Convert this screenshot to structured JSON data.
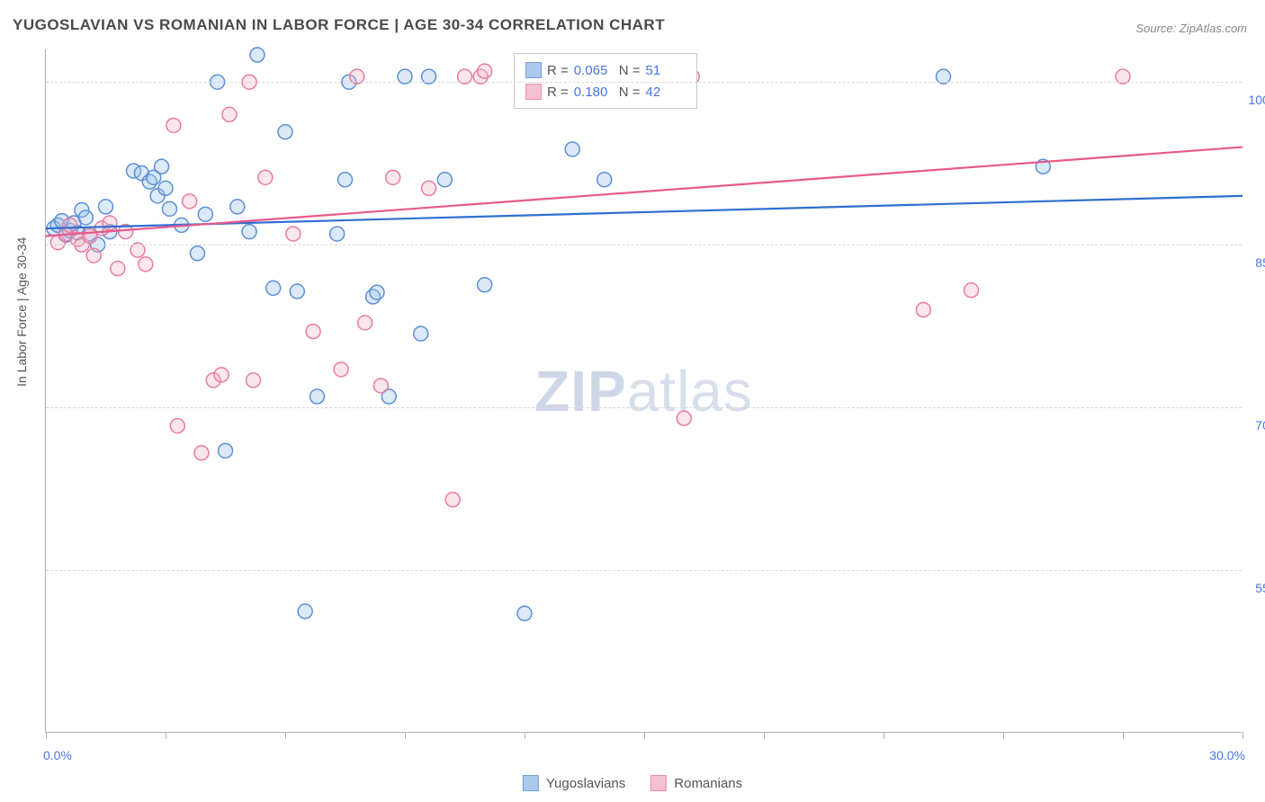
{
  "title": "YUGOSLAVIAN VS ROMANIAN IN LABOR FORCE | AGE 30-34 CORRELATION CHART",
  "source": "Source: ZipAtlas.com",
  "yaxis_label": "In Labor Force | Age 30-34",
  "watermark_zip": "ZIP",
  "watermark_atlas": "atlas",
  "chart": {
    "type": "scatter",
    "background_color": "#ffffff",
    "grid_color": "#d8d8d8",
    "axis_color": "#b0b0b0",
    "tick_label_color": "#4a74e8",
    "xlim": [
      0,
      30
    ],
    "ylim": [
      40,
      103
    ],
    "x_min_label": "0.0%",
    "x_max_label": "30.0%",
    "xticks": [
      0,
      3,
      6,
      9,
      12,
      15,
      18,
      21,
      24,
      27,
      30
    ],
    "yticks": [
      55,
      70,
      85,
      100
    ],
    "ytick_labels": [
      "55.0%",
      "70.0%",
      "85.0%",
      "100.0%"
    ],
    "marker_radius": 8,
    "marker_fill_opacity": 0.35,
    "marker_stroke_width": 1.5,
    "line_width": 2.2,
    "series": [
      {
        "key": "yugoslavians",
        "label": "Yugoslavians",
        "color_stroke": "#5b8fd6",
        "color_fill": "#9cc0ea",
        "line_color": "#2f6fd0",
        "R": "0.065",
        "N": "51",
        "trend": {
          "x1": 0,
          "y1": 86.5,
          "x2": 30,
          "y2": 89.5
        },
        "points": [
          [
            0.2,
            86.5
          ],
          [
            0.3,
            86.8
          ],
          [
            0.4,
            87.2
          ],
          [
            0.5,
            85.9
          ],
          [
            0.6,
            86.3
          ],
          [
            0.7,
            87.0
          ],
          [
            0.8,
            86.1
          ],
          [
            0.9,
            88.2
          ],
          [
            1.0,
            87.5
          ],
          [
            1.1,
            86.0
          ],
          [
            1.3,
            85.0
          ],
          [
            1.5,
            88.5
          ],
          [
            1.6,
            86.2
          ],
          [
            2.2,
            91.8
          ],
          [
            2.4,
            91.6
          ],
          [
            2.6,
            90.8
          ],
          [
            2.7,
            91.2
          ],
          [
            2.8,
            89.5
          ],
          [
            2.9,
            92.2
          ],
          [
            3.0,
            90.2
          ],
          [
            3.1,
            88.3
          ],
          [
            3.4,
            86.8
          ],
          [
            3.8,
            84.2
          ],
          [
            4.0,
            87.8
          ],
          [
            4.3,
            100
          ],
          [
            4.5,
            66.0
          ],
          [
            4.8,
            88.5
          ],
          [
            5.1,
            86.2
          ],
          [
            5.3,
            102.5
          ],
          [
            5.7,
            81.0
          ],
          [
            6.0,
            95.4
          ],
          [
            6.3,
            80.7
          ],
          [
            6.5,
            51.2
          ],
          [
            6.8,
            71.0
          ],
          [
            7.3,
            86.0
          ],
          [
            7.5,
            91.0
          ],
          [
            7.6,
            100
          ],
          [
            8.2,
            80.2
          ],
          [
            8.3,
            80.6
          ],
          [
            8.6,
            71.0
          ],
          [
            9.0,
            100.5
          ],
          [
            9.4,
            76.8
          ],
          [
            9.6,
            100.5
          ],
          [
            10.0,
            91.0
          ],
          [
            11.0,
            81.3
          ],
          [
            12.0,
            51.0
          ],
          [
            13.2,
            93.8
          ],
          [
            14.0,
            91.0
          ],
          [
            14.2,
            100.5
          ],
          [
            22.5,
            100.5
          ],
          [
            25.0,
            92.2
          ]
        ]
      },
      {
        "key": "romanians",
        "label": "Romanians",
        "color_stroke": "#e87ca0",
        "color_fill": "#f4b6c9",
        "line_color": "#e85a8a",
        "R": "0.180",
        "N": "42",
        "trend": {
          "x1": 0,
          "y1": 85.8,
          "x2": 30,
          "y2": 94.0
        },
        "points": [
          [
            0.3,
            85.2
          ],
          [
            0.5,
            86.0
          ],
          [
            0.6,
            86.8
          ],
          [
            0.8,
            85.5
          ],
          [
            0.9,
            85.0
          ],
          [
            1.1,
            85.8
          ],
          [
            1.2,
            84.0
          ],
          [
            1.4,
            86.5
          ],
          [
            1.6,
            87.0
          ],
          [
            1.8,
            82.8
          ],
          [
            2.0,
            86.2
          ],
          [
            2.3,
            84.5
          ],
          [
            2.5,
            83.2
          ],
          [
            3.2,
            96.0
          ],
          [
            3.3,
            68.3
          ],
          [
            3.6,
            89.0
          ],
          [
            3.9,
            65.8
          ],
          [
            4.2,
            72.5
          ],
          [
            4.4,
            73.0
          ],
          [
            4.6,
            97.0
          ],
          [
            5.1,
            100
          ],
          [
            5.2,
            72.5
          ],
          [
            5.5,
            91.2
          ],
          [
            6.2,
            86.0
          ],
          [
            6.7,
            77.0
          ],
          [
            7.4,
            73.5
          ],
          [
            7.8,
            100.5
          ],
          [
            8.0,
            77.8
          ],
          [
            8.4,
            72.0
          ],
          [
            8.7,
            91.2
          ],
          [
            9.6,
            90.2
          ],
          [
            10.2,
            61.5
          ],
          [
            10.5,
            100.5
          ],
          [
            10.9,
            100.5
          ],
          [
            11.0,
            101
          ],
          [
            13.5,
            100.5
          ],
          [
            15.1,
            100.5
          ],
          [
            16.0,
            69.0
          ],
          [
            16.2,
            100.5
          ],
          [
            22.0,
            79.0
          ],
          [
            23.2,
            80.8
          ],
          [
            27.0,
            100.5
          ]
        ]
      }
    ],
    "legend_box": {
      "R_label": "R =",
      "N_label": "N ="
    }
  }
}
